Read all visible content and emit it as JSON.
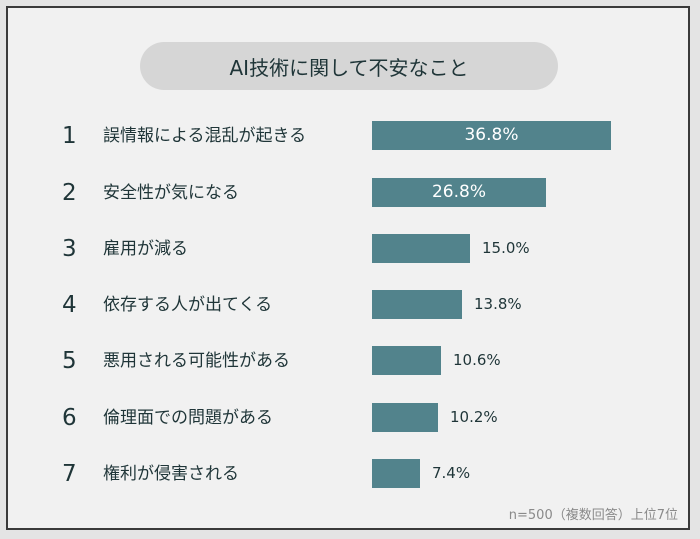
{
  "title": "AI技術に関して不安なこと",
  "note": "n=500（複数回答）上位7位",
  "colors": {
    "bar": "#52838c",
    "text": "#1f3538",
    "pill": "#d6d6d6",
    "background": "#f1f1f1"
  },
  "items": [
    {
      "rank": "1",
      "label": "誤情報による混乱が起きる",
      "value": "36.8%"
    },
    {
      "rank": "2",
      "label": "安全性が気になる",
      "value": "26.8%"
    },
    {
      "rank": "3",
      "label": "雇用が減る",
      "value": "15.0%"
    },
    {
      "rank": "4",
      "label": "依存する人が出てくる",
      "value": "13.8%"
    },
    {
      "rank": "5",
      "label": "悪用される可能性がある",
      "value": "10.6%"
    },
    {
      "rank": "6",
      "label": "倫理面での問題がある",
      "value": "10.2%"
    },
    {
      "rank": "7",
      "label": "権利が侵害される",
      "value": "7.4%"
    }
  ],
  "chart_data": {
    "type": "bar",
    "orientation": "horizontal",
    "title": "AI技術に関して不安なこと",
    "categories": [
      "誤情報による混乱が起きる",
      "安全性が気になる",
      "雇用が減る",
      "依存する人が出てくる",
      "悪用される可能性がある",
      "倫理面での問題がある",
      "権利が侵害される"
    ],
    "values": [
      36.8,
      26.8,
      15.0,
      13.8,
      10.6,
      10.2,
      7.4
    ],
    "unit": "%",
    "xlabel": "",
    "ylabel": "",
    "grid": false,
    "annotation": "n=500（複数回答）上位7位"
  }
}
